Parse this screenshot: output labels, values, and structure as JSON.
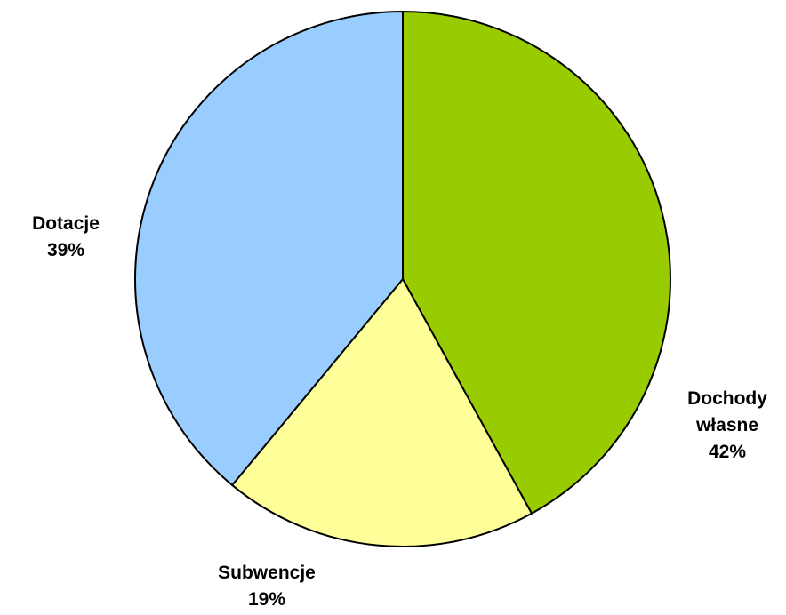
{
  "chart_data": {
    "type": "pie",
    "title": "",
    "slices": [
      {
        "label_lines": [
          "Dochody",
          "własne"
        ],
        "value": 42,
        "value_label": "42%",
        "color": "#99CC00"
      },
      {
        "label_lines": [
          "Subwencje"
        ],
        "value": 19,
        "value_label": "19%",
        "color": "#FFFF99"
      },
      {
        "label_lines": [
          "Dotacje"
        ],
        "value": 39,
        "value_label": "39%",
        "color": "#99CCFF"
      }
    ],
    "start": "12 o'clock",
    "direction": "clockwise",
    "legend": "none",
    "border_color": "#000000"
  }
}
